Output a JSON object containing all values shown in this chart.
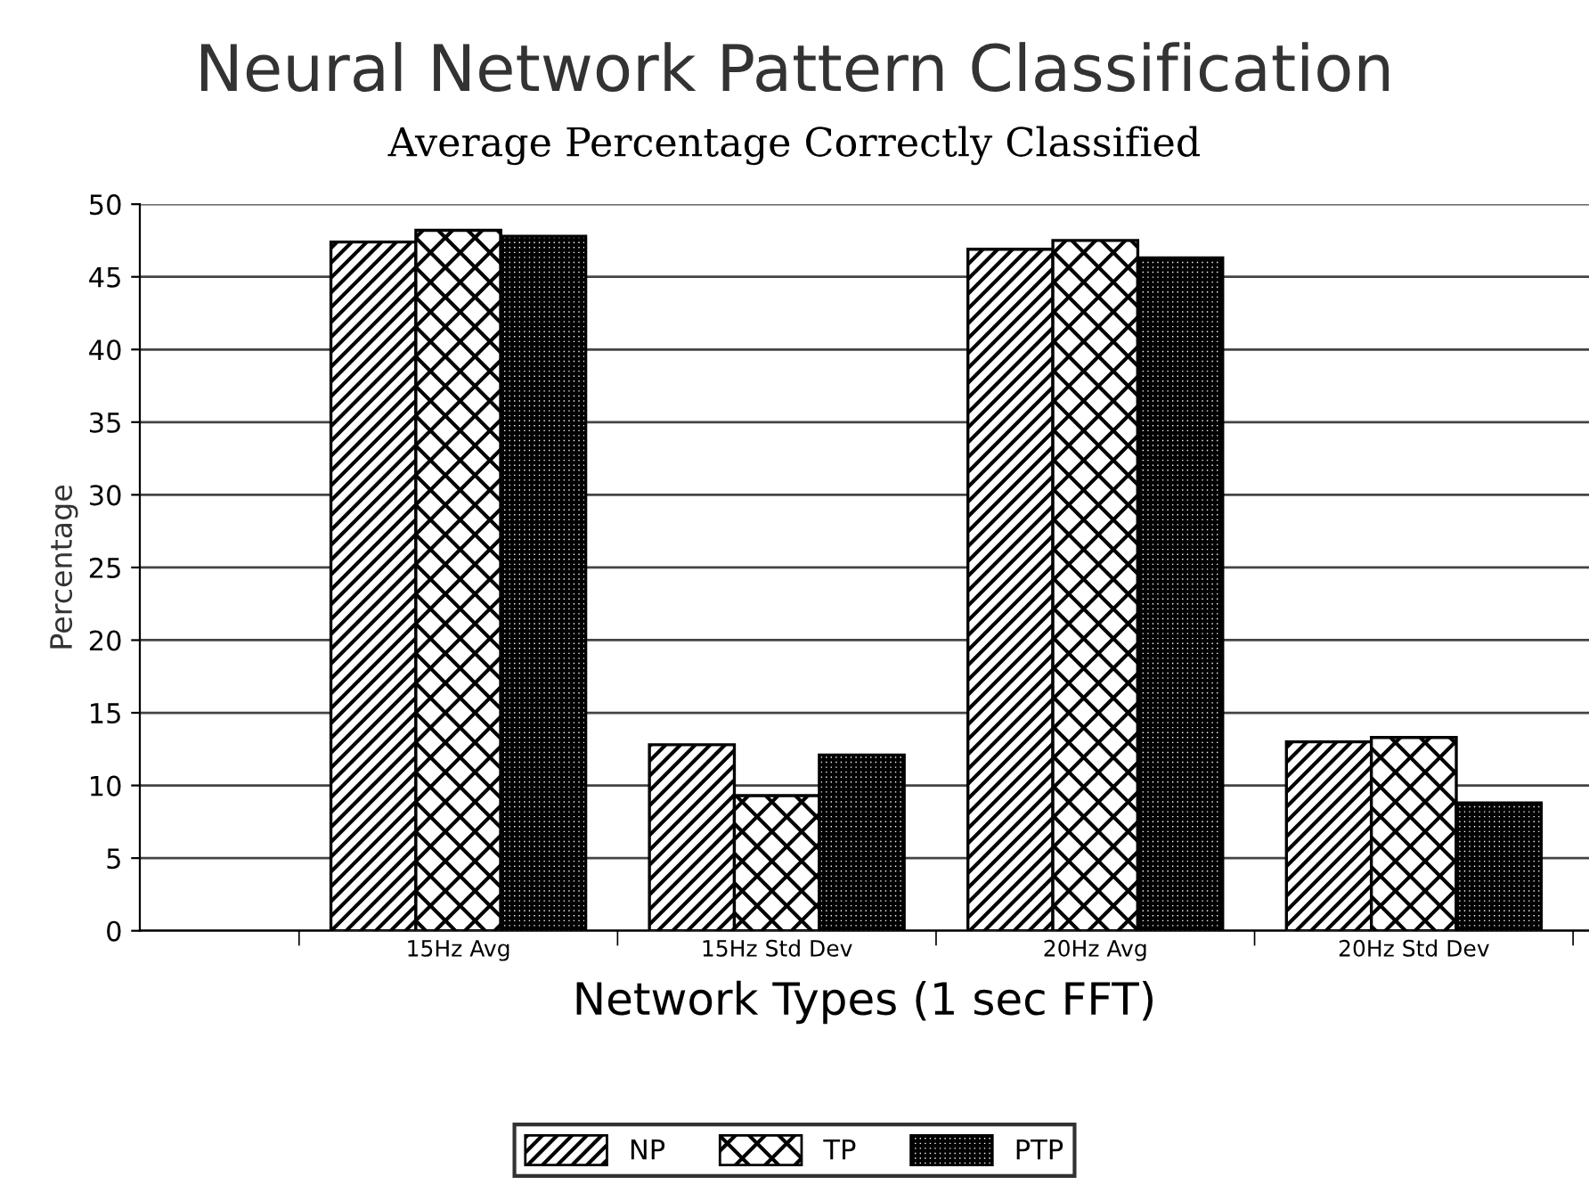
{
  "chart_data": {
    "type": "bar",
    "title": "Neural Network Pattern Classification",
    "subtitle": "Average Percentage Correctly Classified",
    "xlabel": "Network Types (1 sec FFT)",
    "ylabel": "Percentage",
    "categories": [
      "15Hz Avg",
      "15Hz Std Dev",
      "20Hz Avg",
      "20Hz Std Dev"
    ],
    "series": [
      {
        "name": "NP",
        "color": "#000000",
        "values": [
          47.4,
          12.8,
          46.9,
          13.0
        ]
      },
      {
        "name": "TP",
        "color": "#000000",
        "values": [
          48.2,
          9.3,
          47.5,
          13.3
        ]
      },
      {
        "name": "PTP",
        "color": "#000000",
        "values": [
          47.8,
          12.1,
          46.3,
          8.8
        ]
      }
    ],
    "ylim": [
      0,
      50
    ],
    "yticks": [
      0,
      5,
      10,
      15,
      20,
      25,
      30,
      35,
      40,
      45,
      50
    ],
    "grid": "y",
    "legend": "bottom"
  }
}
